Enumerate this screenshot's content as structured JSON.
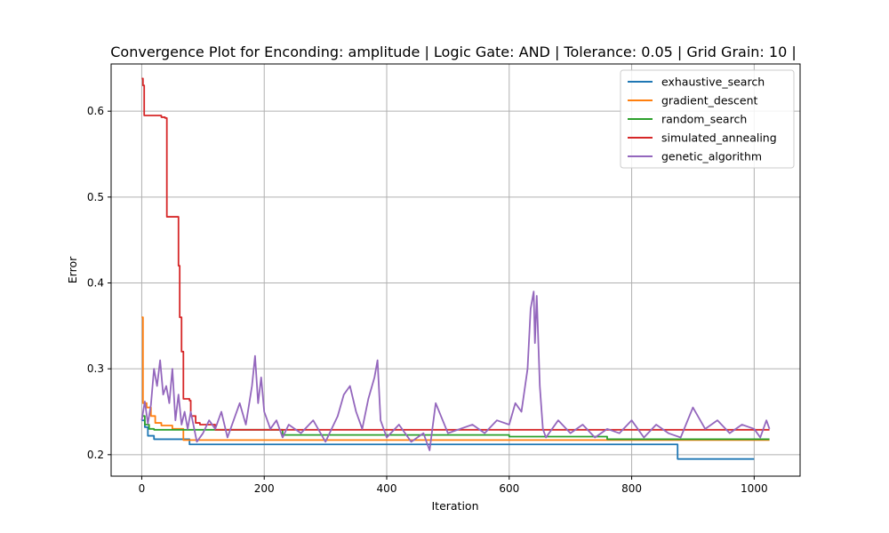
{
  "chart_data": {
    "type": "line",
    "title": "Convergence Plot for Enconding: amplitude | Logic Gate: AND | Tolerance: 0.05 | Grid Grain: 10 |",
    "xlabel": "Iteration",
    "ylabel": "Error",
    "xlim": [
      -50,
      1075
    ],
    "ylim": [
      0.175,
      0.655
    ],
    "xticks": [
      0,
      200,
      400,
      600,
      800,
      1000
    ],
    "yticks": [
      0.2,
      0.3,
      0.4,
      0.5,
      0.6
    ],
    "xtick_labels": [
      "0",
      "200",
      "400",
      "600",
      "800",
      "1000"
    ],
    "ytick_labels": [
      "0.2",
      "0.3",
      "0.4",
      "0.5",
      "0.6"
    ],
    "grid": true,
    "legend_position": "top-right",
    "series": [
      {
        "name": "exhaustive_search",
        "color": "#1f77b4",
        "step": true,
        "x": [
          0,
          5,
          10,
          20,
          78,
          875,
          1000
        ],
        "y": [
          0.24,
          0.232,
          0.222,
          0.218,
          0.212,
          0.195,
          0.195
        ]
      },
      {
        "name": "gradient_descent",
        "color": "#ff7f0e",
        "step": true,
        "x": [
          0,
          2,
          8,
          15,
          22,
          32,
          50,
          68,
          1025
        ],
        "y": [
          0.36,
          0.26,
          0.255,
          0.245,
          0.237,
          0.234,
          0.23,
          0.217,
          0.217
        ]
      },
      {
        "name": "random_search",
        "color": "#2ca02c",
        "step": true,
        "x": [
          0,
          5,
          12,
          20,
          230,
          600,
          760,
          1025
        ],
        "y": [
          0.245,
          0.235,
          0.23,
          0.229,
          0.223,
          0.221,
          0.218,
          0.218
        ]
      },
      {
        "name": "simulated_annealing",
        "color": "#d62728",
        "step": true,
        "x": [
          0,
          2,
          4,
          32,
          38,
          41,
          58,
          60,
          62,
          65,
          68,
          78,
          80,
          88,
          95,
          120,
          180,
          1025
        ],
        "y": [
          0.638,
          0.63,
          0.595,
          0.593,
          0.592,
          0.477,
          0.477,
          0.42,
          0.36,
          0.32,
          0.265,
          0.263,
          0.245,
          0.237,
          0.235,
          0.229,
          0.229,
          0.229
        ]
      },
      {
        "name": "genetic_algorithm",
        "color": "#9467bd",
        "step": false,
        "x": [
          0,
          5,
          10,
          15,
          20,
          25,
          30,
          35,
          40,
          45,
          50,
          55,
          60,
          65,
          70,
          75,
          80,
          90,
          100,
          110,
          120,
          130,
          140,
          150,
          160,
          170,
          180,
          185,
          190,
          195,
          200,
          210,
          220,
          230,
          240,
          250,
          260,
          280,
          300,
          320,
          330,
          340,
          350,
          360,
          370,
          380,
          385,
          390,
          400,
          420,
          440,
          460,
          470,
          480,
          500,
          520,
          540,
          560,
          580,
          600,
          610,
          620,
          630,
          635,
          640,
          642,
          645,
          650,
          655,
          660,
          680,
          700,
          720,
          740,
          760,
          780,
          800,
          820,
          840,
          860,
          880,
          900,
          920,
          940,
          960,
          980,
          1000,
          1010,
          1020,
          1025
        ],
        "y": [
          0.24,
          0.262,
          0.236,
          0.258,
          0.3,
          0.28,
          0.31,
          0.27,
          0.28,
          0.26,
          0.3,
          0.24,
          0.27,
          0.235,
          0.25,
          0.23,
          0.25,
          0.215,
          0.225,
          0.24,
          0.23,
          0.25,
          0.22,
          0.24,
          0.26,
          0.235,
          0.28,
          0.315,
          0.26,
          0.29,
          0.25,
          0.23,
          0.24,
          0.22,
          0.235,
          0.23,
          0.225,
          0.24,
          0.215,
          0.245,
          0.27,
          0.28,
          0.25,
          0.23,
          0.265,
          0.29,
          0.31,
          0.24,
          0.22,
          0.235,
          0.215,
          0.225,
          0.205,
          0.26,
          0.225,
          0.23,
          0.235,
          0.225,
          0.24,
          0.235,
          0.26,
          0.25,
          0.3,
          0.37,
          0.39,
          0.33,
          0.385,
          0.28,
          0.23,
          0.22,
          0.24,
          0.225,
          0.235,
          0.22,
          0.23,
          0.225,
          0.24,
          0.22,
          0.235,
          0.225,
          0.22,
          0.255,
          0.23,
          0.24,
          0.225,
          0.235,
          0.23,
          0.22,
          0.24,
          0.23
        ]
      }
    ]
  }
}
